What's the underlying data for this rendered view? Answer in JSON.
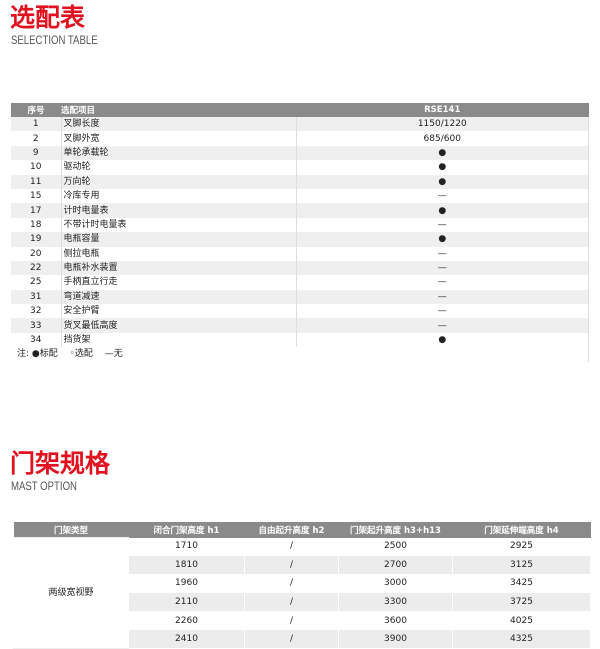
{
  "selection": {
    "title": "选配表",
    "subtitle": "SELECTION TABLE",
    "headers": [
      "序号",
      "选配项目",
      "RSE141"
    ],
    "rows": [
      [
        "1",
        "叉脚长度",
        "1150/1220"
      ],
      [
        "2",
        "叉脚外宽",
        "685/600"
      ],
      [
        "9",
        "单轮承载轮",
        "●"
      ],
      [
        "10",
        "驱动轮",
        "●"
      ],
      [
        "11",
        "万向轮",
        "●"
      ],
      [
        "15",
        "冷库专用",
        "—"
      ],
      [
        "17",
        "计时电量表",
        "●"
      ],
      [
        "18",
        "不带计时电量表",
        "—"
      ],
      [
        "19",
        "电瓶容量",
        "●"
      ],
      [
        "20",
        "侧拉电瓶",
        "—"
      ],
      [
        "22",
        "电瓶补水装置",
        "—"
      ],
      [
        "25",
        "手柄直立行走",
        "—"
      ],
      [
        "31",
        "弯道减速",
        "—"
      ],
      [
        "32",
        "安全护臂",
        "—"
      ],
      [
        "33",
        "货叉最低高度",
        "—"
      ],
      [
        "34",
        "挡货架",
        "●"
      ]
    ],
    "note": "注: ●标配　 ◦选配　 —无"
  },
  "mast": {
    "title": "门架规格",
    "subtitle": "MAST OPTION",
    "headers": [
      "门架类型",
      "闭合门架高度  h1",
      "自由起升高度  h2",
      "门架起升高度  h3+h13",
      "门架延伸端高度  h4"
    ],
    "type": "两级宽视野",
    "rows": [
      [
        "1710",
        "/",
        "2500",
        "2925"
      ],
      [
        "1810",
        "/",
        "2700",
        "3125"
      ],
      [
        "1960",
        "/",
        "3000",
        "3425"
      ],
      [
        "2110",
        "/",
        "3300",
        "3725"
      ],
      [
        "2260",
        "/",
        "3600",
        "4025"
      ],
      [
        "2410",
        "/",
        "3900",
        "4325"
      ]
    ]
  },
  "colors": {
    "accent": "#e0121f",
    "header": "#8a8a8a"
  }
}
